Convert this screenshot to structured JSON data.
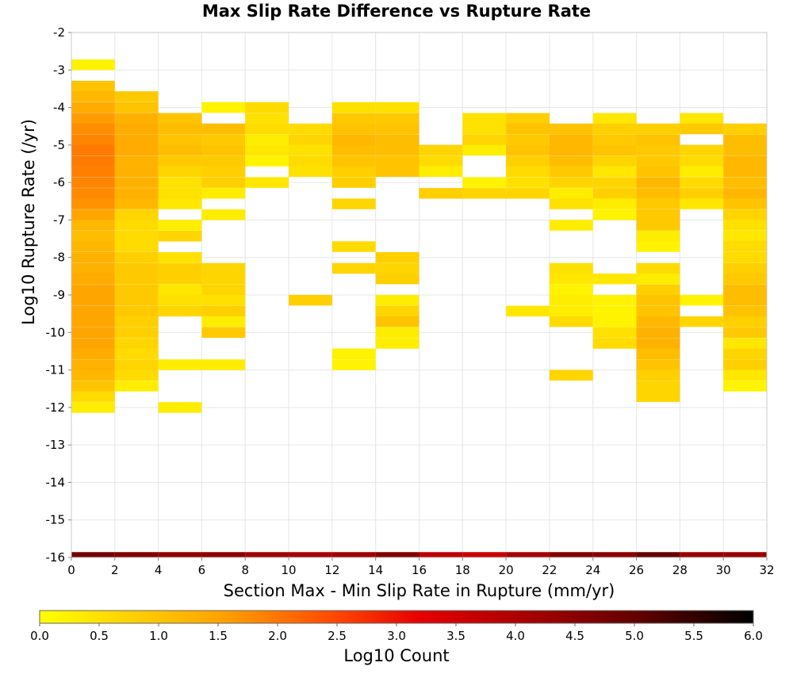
{
  "chart_data": {
    "type": "heatmap",
    "title": "Max Slip Rate Difference vs Rupture Rate",
    "xlabel": "Section Max - Min Slip Rate in Rupture (mm/yr)",
    "ylabel": "Log10 Rupture Rate (/yr)",
    "xlim": [
      0,
      32
    ],
    "ylim": [
      -16,
      -2
    ],
    "x_ticks": [
      0,
      2,
      4,
      6,
      8,
      10,
      12,
      14,
      16,
      18,
      20,
      22,
      24,
      26,
      28,
      30,
      32
    ],
    "y_ticks": [
      -2,
      -3,
      -4,
      -5,
      -6,
      -7,
      -8,
      -9,
      -10,
      -11,
      -12,
      -13,
      -14,
      -15,
      -16
    ],
    "grid": true,
    "x_bin_width": 2,
    "y_bin_height": 0.285,
    "colorbar": {
      "label": "Log10 Count",
      "range": [
        0,
        6
      ],
      "ticks": [
        0.0,
        0.5,
        1.0,
        1.5,
        2.0,
        2.5,
        3.0,
        3.5,
        4.0,
        4.5,
        5.0,
        5.5,
        6.0
      ],
      "tick_labels": [
        "0.0",
        "0.5",
        "1.0",
        "1.5",
        "2.0",
        "2.5",
        "3.0",
        "3.5",
        "4.0",
        "4.5",
        "5.0",
        "5.5",
        "6.0"
      ]
    },
    "columns": [
      {
        "x": 0,
        "cells": [
          [
            -2.86,
            0.2
          ],
          [
            -3.43,
            1.0
          ],
          [
            -3.71,
            1.2
          ],
          [
            -4.0,
            1.4
          ],
          [
            -4.29,
            1.6
          ],
          [
            -4.57,
            1.75
          ],
          [
            -4.86,
            1.85
          ],
          [
            -5.14,
            1.95
          ],
          [
            -5.43,
            1.95
          ],
          [
            -5.71,
            1.9
          ],
          [
            -6.0,
            1.85
          ],
          [
            -6.29,
            1.8
          ],
          [
            -6.57,
            1.7
          ],
          [
            -6.86,
            1.5
          ],
          [
            -7.14,
            1.2
          ],
          [
            -7.43,
            1.1
          ],
          [
            -7.71,
            1.2
          ],
          [
            -8.0,
            1.3
          ],
          [
            -8.29,
            1.3
          ],
          [
            -8.57,
            1.4
          ],
          [
            -8.86,
            1.5
          ],
          [
            -9.14,
            1.5
          ],
          [
            -9.43,
            1.5
          ],
          [
            -9.71,
            1.5
          ],
          [
            -10.0,
            1.5
          ],
          [
            -10.29,
            1.5
          ],
          [
            -10.57,
            1.4
          ],
          [
            -10.86,
            1.3
          ],
          [
            -11.14,
            1.2
          ],
          [
            -11.43,
            1.0
          ],
          [
            -11.71,
            0.6
          ],
          [
            -12.0,
            0.3
          ]
        ]
      },
      {
        "x": 2,
        "cells": [
          [
            -3.71,
            0.9
          ],
          [
            -4.0,
            1.0
          ],
          [
            -4.29,
            1.3
          ],
          [
            -4.57,
            1.4
          ],
          [
            -4.86,
            1.4
          ],
          [
            -5.14,
            1.4
          ],
          [
            -5.43,
            1.3
          ],
          [
            -5.71,
            1.3
          ],
          [
            -6.0,
            1.3
          ],
          [
            -6.29,
            1.3
          ],
          [
            -6.57,
            1.2
          ],
          [
            -6.86,
            0.7
          ],
          [
            -7.14,
            0.6
          ],
          [
            -7.43,
            0.6
          ],
          [
            -7.71,
            0.6
          ],
          [
            -8.0,
            0.8
          ],
          [
            -8.29,
            0.9
          ],
          [
            -8.57,
            0.9
          ],
          [
            -8.86,
            0.9
          ],
          [
            -9.14,
            0.9
          ],
          [
            -9.43,
            0.9
          ],
          [
            -9.71,
            0.8
          ],
          [
            -10.0,
            0.8
          ],
          [
            -10.29,
            0.7
          ],
          [
            -10.57,
            0.6
          ],
          [
            -10.86,
            0.7
          ],
          [
            -11.14,
            0.6
          ],
          [
            -11.43,
            0.3
          ]
        ]
      },
      {
        "x": 4,
        "cells": [
          [
            -4.29,
            1.0
          ],
          [
            -4.57,
            1.1
          ],
          [
            -4.86,
            1.0
          ],
          [
            -5.14,
            1.1
          ],
          [
            -5.43,
            0.9
          ],
          [
            -5.71,
            0.7
          ],
          [
            -6.0,
            0.5
          ],
          [
            -6.29,
            0.5
          ],
          [
            -6.57,
            0.4
          ],
          [
            -7.14,
            0.3
          ],
          [
            -7.43,
            0.7
          ],
          [
            -8.0,
            0.5
          ],
          [
            -8.29,
            0.8
          ],
          [
            -8.57,
            0.8
          ],
          [
            -8.86,
            0.4
          ],
          [
            -9.14,
            0.5
          ],
          [
            -9.43,
            0.7
          ],
          [
            -10.86,
            0.3
          ],
          [
            -12.0,
            0.3
          ]
        ]
      },
      {
        "x": 6,
        "cells": [
          [
            -4.0,
            0.2
          ],
          [
            -4.57,
            1.1
          ],
          [
            -4.86,
            0.9
          ],
          [
            -5.14,
            1.0
          ],
          [
            -5.43,
            0.9
          ],
          [
            -5.71,
            0.8
          ],
          [
            -6.0,
            0.8
          ],
          [
            -6.29,
            0.3
          ],
          [
            -6.86,
            0.3
          ],
          [
            -8.29,
            0.7
          ],
          [
            -8.57,
            0.7
          ],
          [
            -8.86,
            0.7
          ],
          [
            -9.14,
            0.5
          ],
          [
            -9.43,
            0.8
          ],
          [
            -9.71,
            0.3
          ],
          [
            -10.0,
            0.9
          ],
          [
            -10.86,
            0.3
          ]
        ]
      },
      {
        "x": 8,
        "cells": [
          [
            -4.0,
            0.6
          ],
          [
            -4.29,
            0.5
          ],
          [
            -4.57,
            0.6
          ],
          [
            -4.86,
            0.3
          ],
          [
            -5.14,
            0.4
          ],
          [
            -5.43,
            0.2
          ],
          [
            -6.0,
            0.4
          ]
        ]
      },
      {
        "x": 10,
        "cells": [
          [
            -4.57,
            0.6
          ],
          [
            -4.86,
            0.7
          ],
          [
            -5.14,
            0.5
          ],
          [
            -5.43,
            0.6
          ],
          [
            -5.71,
            0.5
          ],
          [
            -9.14,
            0.8
          ]
        ]
      },
      {
        "x": 12,
        "cells": [
          [
            -4.0,
            0.5
          ],
          [
            -4.29,
            0.9
          ],
          [
            -4.57,
            1.0
          ],
          [
            -4.86,
            1.2
          ],
          [
            -5.14,
            1.1
          ],
          [
            -5.43,
            1.0
          ],
          [
            -5.71,
            0.8
          ],
          [
            -6.0,
            0.8
          ],
          [
            -6.57,
            0.7
          ],
          [
            -7.71,
            0.6
          ],
          [
            -8.29,
            0.7
          ],
          [
            -10.57,
            0.2
          ],
          [
            -10.86,
            0.2
          ]
        ]
      },
      {
        "x": 14,
        "cells": [
          [
            -4.0,
            0.5
          ],
          [
            -4.29,
            0.9
          ],
          [
            -4.57,
            1.0
          ],
          [
            -4.86,
            1.1
          ],
          [
            -5.14,
            1.1
          ],
          [
            -5.43,
            1.0
          ],
          [
            -5.71,
            1.0
          ],
          [
            -8.0,
            0.8
          ],
          [
            -8.29,
            0.7
          ],
          [
            -8.57,
            0.8
          ],
          [
            -9.14,
            0.3
          ],
          [
            -9.43,
            0.7
          ],
          [
            -9.71,
            1.0
          ],
          [
            -10.0,
            0.3
          ],
          [
            -10.29,
            0.3
          ]
        ]
      },
      {
        "x": 16,
        "cells": [
          [
            -5.14,
            0.7
          ],
          [
            -5.43,
            0.6
          ],
          [
            -5.71,
            0.3
          ],
          [
            -6.29,
            0.8
          ]
        ]
      },
      {
        "x": 18,
        "cells": [
          [
            -4.29,
            0.5
          ],
          [
            -4.57,
            0.5
          ],
          [
            -4.86,
            0.7
          ],
          [
            -5.14,
            0.3
          ],
          [
            -6.0,
            0.2
          ],
          [
            -6.29,
            0.7
          ]
        ]
      },
      {
        "x": 20,
        "cells": [
          [
            -4.29,
            0.8
          ],
          [
            -4.57,
            1.0
          ],
          [
            -4.86,
            0.9
          ],
          [
            -5.14,
            1.0
          ],
          [
            -5.43,
            0.8
          ],
          [
            -5.71,
            0.6
          ],
          [
            -6.0,
            0.5
          ],
          [
            -6.29,
            0.7
          ],
          [
            -9.43,
            0.4
          ]
        ]
      },
      {
        "x": 22,
        "cells": [
          [
            -4.57,
            1.0
          ],
          [
            -4.86,
            1.2
          ],
          [
            -5.14,
            1.2
          ],
          [
            -5.43,
            1.1
          ],
          [
            -5.71,
            0.9
          ],
          [
            -6.0,
            0.7
          ],
          [
            -6.29,
            0.3
          ],
          [
            -6.57,
            0.5
          ],
          [
            -7.14,
            0.3
          ],
          [
            -8.29,
            0.5
          ],
          [
            -8.57,
            0.4
          ],
          [
            -8.86,
            0.2
          ],
          [
            -9.14,
            0.3
          ],
          [
            -9.43,
            0.3
          ],
          [
            -9.71,
            0.6
          ],
          [
            -11.14,
            0.7
          ]
        ]
      },
      {
        "x": 24,
        "cells": [
          [
            -4.29,
            0.4
          ],
          [
            -4.57,
            0.8
          ],
          [
            -4.86,
            0.9
          ],
          [
            -5.14,
            1.0
          ],
          [
            -5.43,
            0.7
          ],
          [
            -5.71,
            0.4
          ],
          [
            -6.0,
            0.7
          ],
          [
            -6.29,
            0.8
          ],
          [
            -6.57,
            0.3
          ],
          [
            -6.86,
            0.2
          ],
          [
            -8.57,
            0.4
          ],
          [
            -9.14,
            0.2
          ],
          [
            -9.43,
            0.2
          ],
          [
            -9.71,
            0.2
          ],
          [
            -10.0,
            0.5
          ],
          [
            -10.29,
            0.6
          ]
        ]
      },
      {
        "x": 26,
        "cells": [
          [
            -4.57,
            0.8
          ],
          [
            -4.86,
            1.0
          ],
          [
            -5.14,
            0.9
          ],
          [
            -5.43,
            0.9
          ],
          [
            -5.71,
            1.0
          ],
          [
            -6.0,
            1.2
          ],
          [
            -6.29,
            1.1
          ],
          [
            -6.57,
            0.9
          ],
          [
            -6.86,
            0.9
          ],
          [
            -7.14,
            0.9
          ],
          [
            -7.43,
            0.3
          ],
          [
            -7.71,
            0.2
          ],
          [
            -8.29,
            0.6
          ],
          [
            -8.57,
            0.3
          ],
          [
            -8.86,
            0.8
          ],
          [
            -9.14,
            1.0
          ],
          [
            -9.43,
            1.0
          ],
          [
            -9.71,
            1.2
          ],
          [
            -10.0,
            1.3
          ],
          [
            -10.29,
            1.3
          ],
          [
            -10.57,
            1.1
          ],
          [
            -10.86,
            1.0
          ],
          [
            -11.14,
            0.8
          ],
          [
            -11.43,
            0.7
          ],
          [
            -11.71,
            0.7
          ]
        ]
      },
      {
        "x": 28,
        "cells": [
          [
            -4.29,
            0.4
          ],
          [
            -4.57,
            0.9
          ],
          [
            -5.14,
            0.7
          ],
          [
            -5.43,
            0.6
          ],
          [
            -5.71,
            0.3
          ],
          [
            -6.0,
            0.6
          ],
          [
            -6.29,
            0.8
          ],
          [
            -6.57,
            0.4
          ],
          [
            -9.14,
            0.2
          ],
          [
            -9.71,
            0.7
          ]
        ]
      },
      {
        "x": 30,
        "cells": [
          [
            -4.57,
            0.8
          ],
          [
            -4.86,
            1.1
          ],
          [
            -5.14,
            1.1
          ],
          [
            -5.43,
            1.2
          ],
          [
            -5.71,
            1.2
          ],
          [
            -6.0,
            1.1
          ],
          [
            -6.29,
            1.2
          ],
          [
            -6.57,
            1.0
          ],
          [
            -6.86,
            0.7
          ],
          [
            -7.14,
            0.5
          ],
          [
            -7.43,
            0.4
          ],
          [
            -7.71,
            0.6
          ],
          [
            -8.0,
            0.6
          ],
          [
            -8.29,
            0.8
          ],
          [
            -8.57,
            0.9
          ],
          [
            -8.86,
            1.1
          ],
          [
            -9.14,
            1.1
          ],
          [
            -9.43,
            1.0
          ],
          [
            -9.71,
            0.8
          ],
          [
            -10.0,
            0.9
          ],
          [
            -10.29,
            0.4
          ],
          [
            -10.57,
            0.7
          ],
          [
            -10.86,
            0.8
          ],
          [
            -11.14,
            0.4
          ],
          [
            -11.43,
            0.2
          ]
        ]
      }
    ],
    "bottom_strip": {
      "y": -16,
      "values": [
        4.8,
        4.6,
        4.4,
        4.5,
        4.2,
        4.1,
        4.2,
        4.6,
        3.8,
        3.6,
        4.1,
        4.6,
        4.5,
        5.0,
        4.3,
        4.3
      ]
    }
  }
}
